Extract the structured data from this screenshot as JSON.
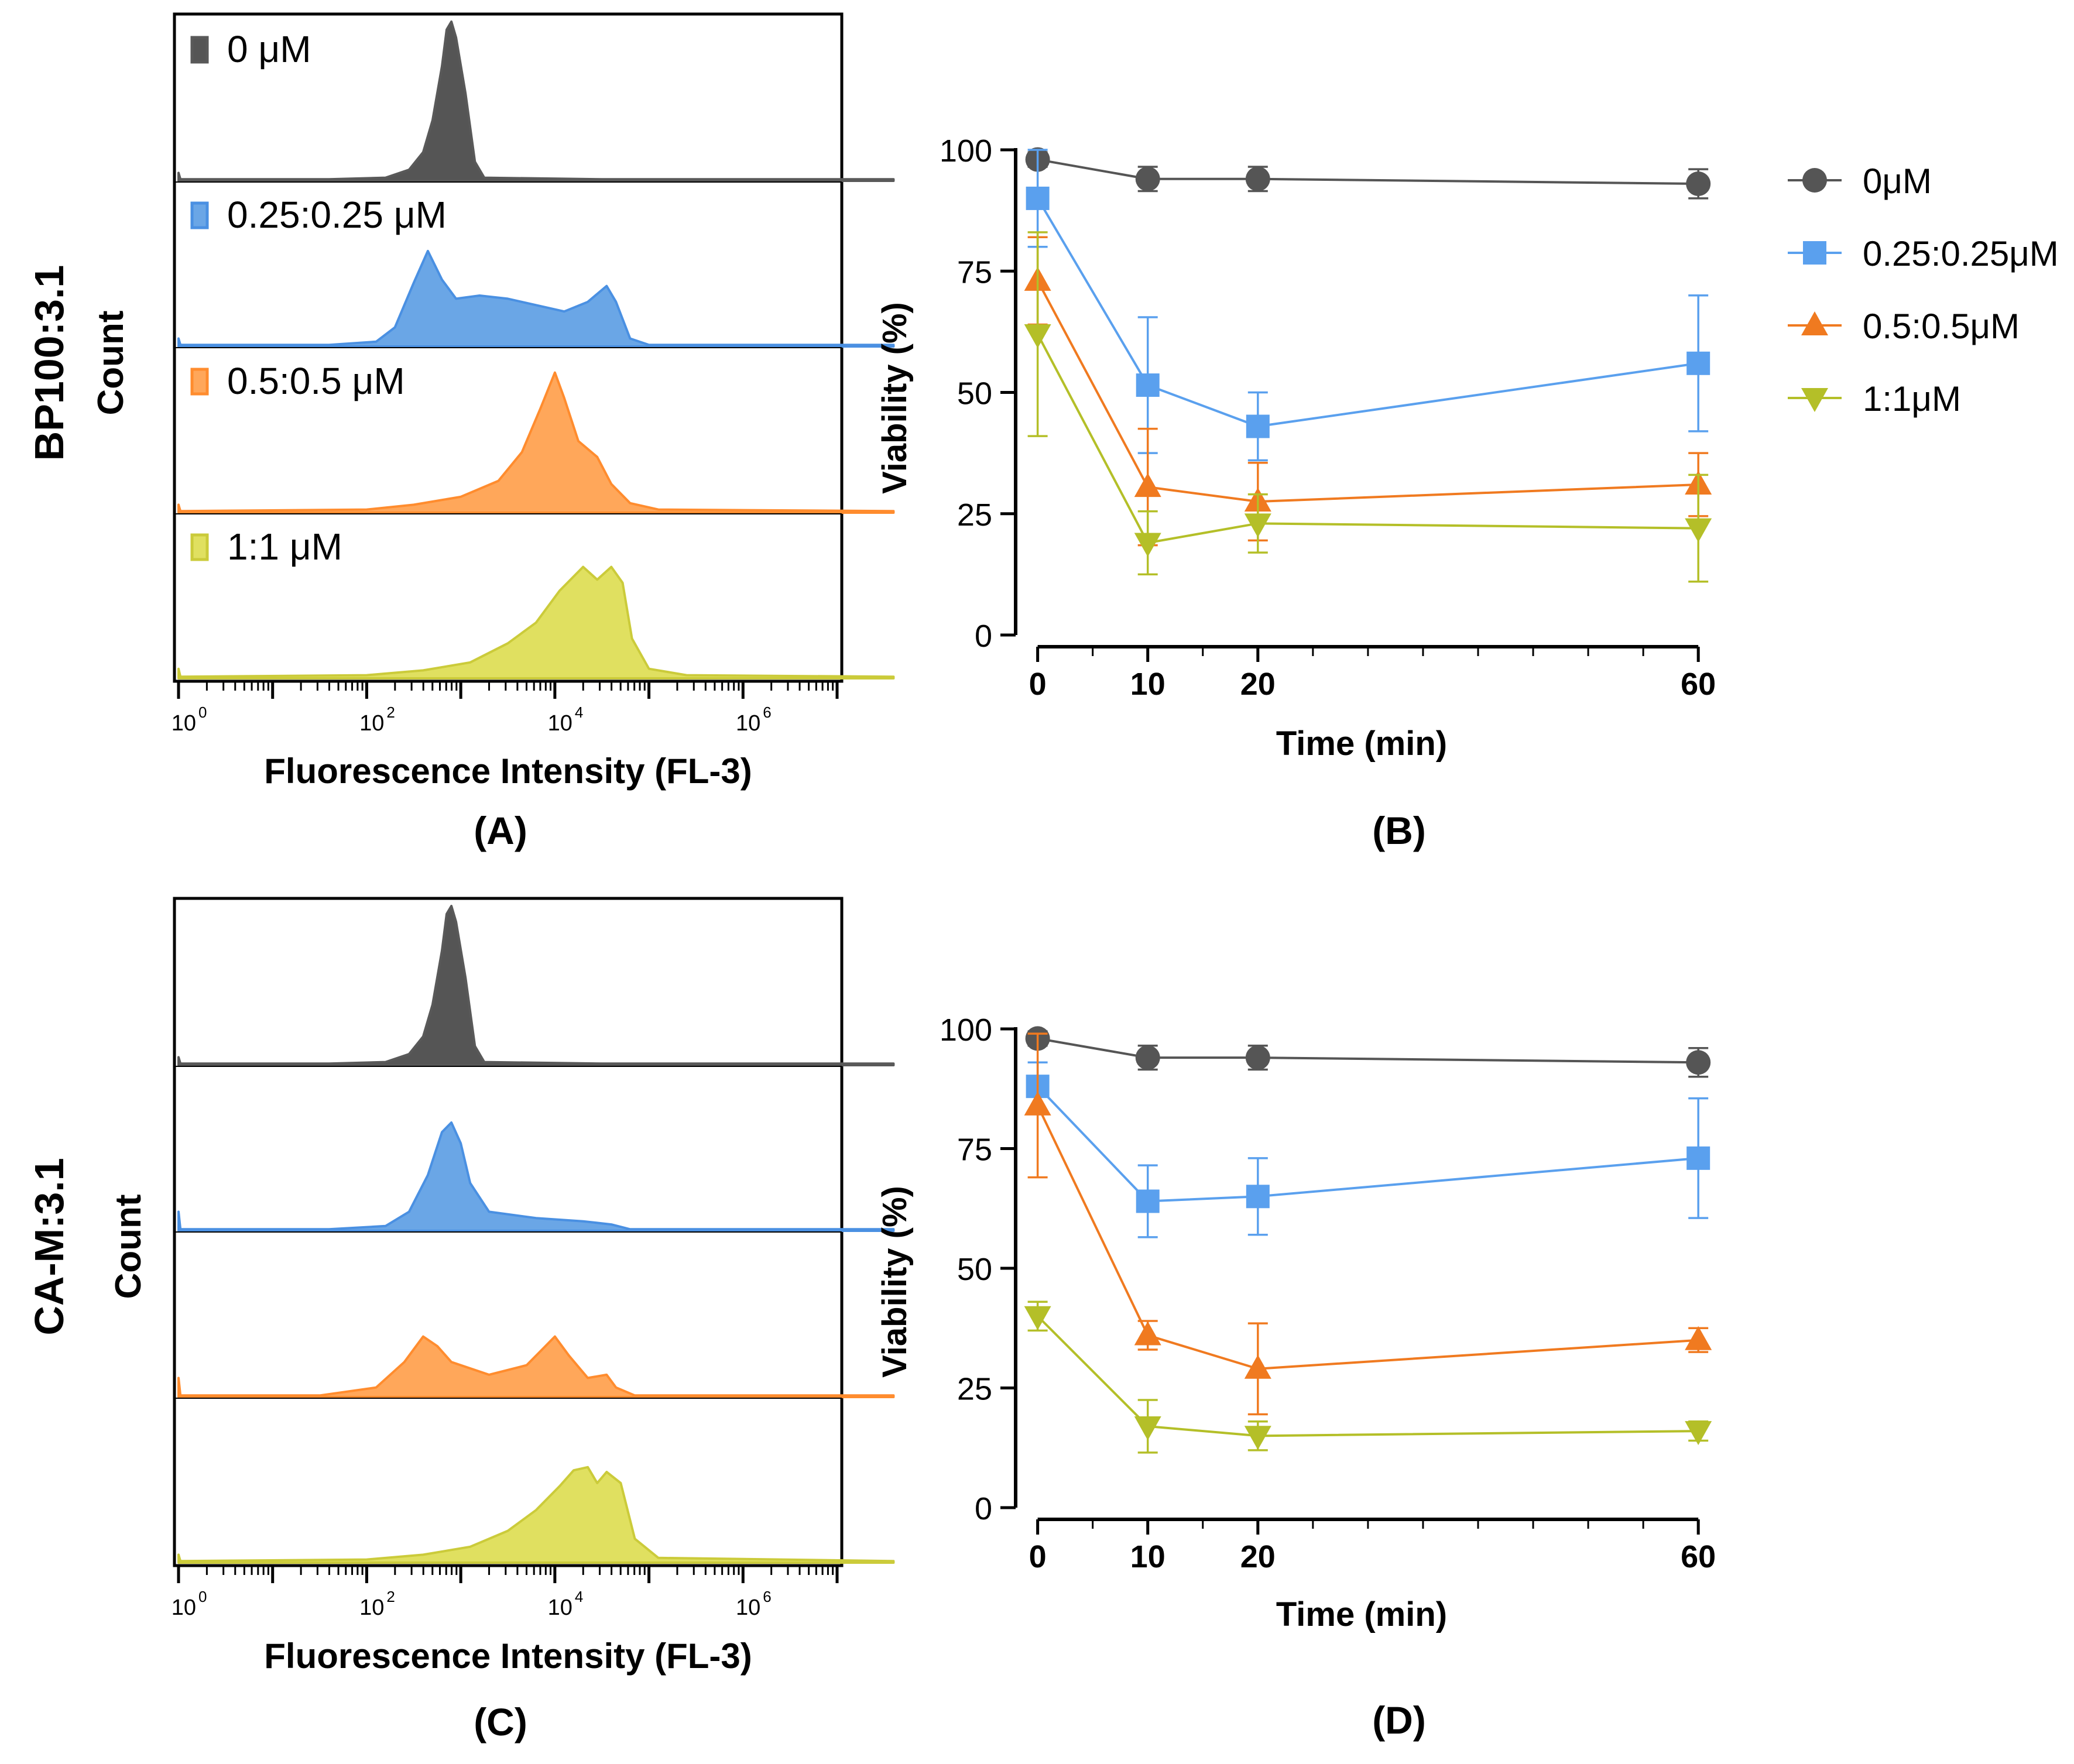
{
  "colors": {
    "0uM": "#595959",
    "0.25uM": "#4a90e2",
    "0.5uM": "#ff8c2e",
    "1uM": "#cbcb3a",
    "0uM_fill": "#555555",
    "0.25uM_fill": "#6aa6e6",
    "0.5uM_fill": "#ffa75a",
    "1uM_fill": "#e0e060",
    "line_0uM": "#555555",
    "line_025uM": "#5aa0ee",
    "line_05uM": "#f07a20",
    "line_1uM": "#b4bf28"
  },
  "chart_data": [
    {
      "id": "A",
      "type": "histogram",
      "panel_label": "(A)",
      "row_label": "BP100:3.1",
      "ylabel": "Count",
      "xlabel": "Fluorescence Intensity (FL-3)",
      "xscale": "log",
      "xlim": [
        1,
        10000000
      ],
      "tick_labels": [
        {
          "base": "10",
          "exp": "0",
          "value": 1
        },
        {
          "base": "10",
          "exp": "2",
          "value": 100
        },
        {
          "base": "10",
          "exp": "4",
          "value": 10000
        },
        {
          "base": "10",
          "exp": "6",
          "value": 1000000
        }
      ],
      "legend": [
        "0 μM",
        "0.25:0.25 μM",
        "0.5:0.5 μM",
        "1:1 μM"
      ],
      "histograms": [
        {
          "name": "0 μM",
          "color_key": "0uM",
          "points": [
            [
              0,
              0.05
            ],
            [
              0.02,
              0.01
            ],
            [
              1.6,
              0.01
            ],
            [
              2.2,
              0.02
            ],
            [
              2.45,
              0.07
            ],
            [
              2.6,
              0.18
            ],
            [
              2.7,
              0.38
            ],
            [
              2.8,
              0.72
            ],
            [
              2.85,
              0.95
            ],
            [
              2.9,
              1.0
            ],
            [
              2.95,
              0.9
            ],
            [
              3.05,
              0.55
            ],
            [
              3.15,
              0.12
            ],
            [
              3.25,
              0.02
            ],
            [
              4.5,
              0.01
            ],
            [
              7.6,
              0.01
            ]
          ]
        },
        {
          "name": "0.25:0.25 μM",
          "color_key": "0.25uM",
          "points": [
            [
              0,
              0.05
            ],
            [
              0.02,
              0.01
            ],
            [
              1.6,
              0.01
            ],
            [
              2.1,
              0.03
            ],
            [
              2.3,
              0.12
            ],
            [
              2.5,
              0.4
            ],
            [
              2.65,
              0.6
            ],
            [
              2.8,
              0.42
            ],
            [
              2.95,
              0.3
            ],
            [
              3.2,
              0.32
            ],
            [
              3.5,
              0.3
            ],
            [
              3.8,
              0.26
            ],
            [
              4.1,
              0.22
            ],
            [
              4.35,
              0.28
            ],
            [
              4.55,
              0.38
            ],
            [
              4.65,
              0.28
            ],
            [
              4.8,
              0.05
            ],
            [
              5.0,
              0.01
            ],
            [
              7.6,
              0.01
            ]
          ]
        },
        {
          "name": "0.5:0.5 μM",
          "color_key": "0.5uM",
          "points": [
            [
              0,
              0.05
            ],
            [
              0.02,
              0.01
            ],
            [
              2.0,
              0.02
            ],
            [
              2.5,
              0.05
            ],
            [
              3.0,
              0.1
            ],
            [
              3.4,
              0.2
            ],
            [
              3.65,
              0.38
            ],
            [
              3.85,
              0.66
            ],
            [
              4.0,
              0.88
            ],
            [
              4.1,
              0.72
            ],
            [
              4.25,
              0.45
            ],
            [
              4.45,
              0.35
            ],
            [
              4.6,
              0.18
            ],
            [
              4.8,
              0.06
            ],
            [
              5.1,
              0.02
            ],
            [
              7.6,
              0.01
            ]
          ]
        },
        {
          "name": "1:1 μM",
          "color_key": "1uM",
          "points": [
            [
              0,
              0.06
            ],
            [
              0.02,
              0.01
            ],
            [
              2.0,
              0.02
            ],
            [
              2.6,
              0.05
            ],
            [
              3.1,
              0.1
            ],
            [
              3.5,
              0.22
            ],
            [
              3.8,
              0.35
            ],
            [
              4.05,
              0.55
            ],
            [
              4.3,
              0.7
            ],
            [
              4.45,
              0.62
            ],
            [
              4.6,
              0.7
            ],
            [
              4.72,
              0.6
            ],
            [
              4.82,
              0.25
            ],
            [
              5.0,
              0.06
            ],
            [
              5.4,
              0.02
            ],
            [
              7.6,
              0.01
            ]
          ]
        }
      ]
    },
    {
      "id": "B",
      "type": "line",
      "panel_label": "(B)",
      "xlabel": "Time (min)",
      "ylabel": "Viability (%)",
      "x": [
        0,
        10,
        20,
        60
      ],
      "xlim": [
        -2,
        61
      ],
      "ylim": [
        0,
        100
      ],
      "yticks": [
        0,
        25,
        50,
        75,
        100
      ],
      "xticks": [
        0,
        10,
        20,
        60
      ],
      "series": [
        {
          "name": "0μM",
          "marker": "circle",
          "color_key": "line_0uM",
          "values": [
            98,
            94,
            94,
            93
          ],
          "errors": [
            1.5,
            2.5,
            2.5,
            3
          ]
        },
        {
          "name": "0.25:0.25μM",
          "marker": "square",
          "color_key": "line_025uM",
          "values": [
            90,
            51.5,
            43,
            56
          ],
          "errors": [
            10,
            14,
            7,
            14
          ]
        },
        {
          "name": "0.5:0.5μM",
          "marker": "triangle-up",
          "color_key": "line_05uM",
          "values": [
            73,
            30.5,
            27.5,
            31
          ],
          "errors": [
            9,
            12,
            8,
            6.5
          ]
        },
        {
          "name": "1:1μM",
          "marker": "triangle-down",
          "color_key": "line_1uM",
          "values": [
            62,
            19,
            23,
            22
          ],
          "errors": [
            21,
            6.5,
            6,
            11
          ]
        }
      ],
      "legend": [
        "0μM",
        "0.25:0.25μM",
        "0.5:0.5μM",
        "1:1μM"
      ]
    },
    {
      "id": "C",
      "type": "histogram",
      "panel_label": "(C)",
      "row_label": "CA-M:3.1",
      "ylabel": "Count",
      "xlabel": "Fluorescence Intensity (FL-3)",
      "xscale": "log",
      "xlim": [
        1,
        10000000
      ],
      "tick_labels": [
        {
          "base": "10",
          "exp": "0",
          "value": 1
        },
        {
          "base": "10",
          "exp": "2",
          "value": 100
        },
        {
          "base": "10",
          "exp": "4",
          "value": 10000
        },
        {
          "base": "10",
          "exp": "6",
          "value": 1000000
        }
      ],
      "histograms": [
        {
          "name": "0 μM",
          "color_key": "0uM",
          "points": [
            [
              0,
              0.05
            ],
            [
              0.02,
              0.01
            ],
            [
              1.6,
              0.01
            ],
            [
              2.2,
              0.02
            ],
            [
              2.45,
              0.07
            ],
            [
              2.6,
              0.18
            ],
            [
              2.7,
              0.38
            ],
            [
              2.8,
              0.72
            ],
            [
              2.85,
              0.95
            ],
            [
              2.9,
              1.0
            ],
            [
              2.95,
              0.9
            ],
            [
              3.05,
              0.55
            ],
            [
              3.15,
              0.12
            ],
            [
              3.25,
              0.02
            ],
            [
              4.5,
              0.01
            ],
            [
              7.6,
              0.01
            ]
          ]
        },
        {
          "name": "0.25:0.25 μM",
          "color_key": "0.25uM",
          "points": [
            [
              0,
              0.12
            ],
            [
              0.02,
              0.01
            ],
            [
              1.6,
              0.01
            ],
            [
              2.2,
              0.03
            ],
            [
              2.45,
              0.12
            ],
            [
              2.65,
              0.35
            ],
            [
              2.8,
              0.62
            ],
            [
              2.9,
              0.68
            ],
            [
              3.0,
              0.55
            ],
            [
              3.1,
              0.3
            ],
            [
              3.3,
              0.12
            ],
            [
              3.8,
              0.08
            ],
            [
              4.3,
              0.06
            ],
            [
              4.6,
              0.04
            ],
            [
              4.8,
              0.01
            ],
            [
              7.6,
              0.01
            ]
          ]
        },
        {
          "name": "0.5:0.5 μM",
          "color_key": "0.5uM",
          "points": [
            [
              0,
              0.12
            ],
            [
              0.02,
              0.01
            ],
            [
              1.5,
              0.01
            ],
            [
              2.1,
              0.06
            ],
            [
              2.4,
              0.22
            ],
            [
              2.6,
              0.38
            ],
            [
              2.75,
              0.32
            ],
            [
              2.9,
              0.22
            ],
            [
              3.3,
              0.14
            ],
            [
              3.7,
              0.2
            ],
            [
              3.9,
              0.32
            ],
            [
              4.0,
              0.38
            ],
            [
              4.15,
              0.26
            ],
            [
              4.35,
              0.12
            ],
            [
              4.55,
              0.14
            ],
            [
              4.65,
              0.06
            ],
            [
              4.85,
              0.01
            ],
            [
              7.6,
              0.01
            ]
          ]
        },
        {
          "name": "1:1 μM",
          "color_key": "1uM",
          "points": [
            [
              0,
              0.05
            ],
            [
              0.02,
              0.01
            ],
            [
              2.0,
              0.02
            ],
            [
              2.6,
              0.05
            ],
            [
              3.1,
              0.1
            ],
            [
              3.5,
              0.2
            ],
            [
              3.8,
              0.33
            ],
            [
              4.05,
              0.48
            ],
            [
              4.2,
              0.58
            ],
            [
              4.35,
              0.6
            ],
            [
              4.45,
              0.5
            ],
            [
              4.55,
              0.57
            ],
            [
              4.7,
              0.5
            ],
            [
              4.85,
              0.15
            ],
            [
              5.1,
              0.03
            ],
            [
              7.6,
              0.01
            ]
          ]
        }
      ]
    },
    {
      "id": "D",
      "type": "line",
      "panel_label": "(D)",
      "xlabel": "Time (min)",
      "ylabel": "Viability (%)",
      "x": [
        0,
        10,
        20,
        60
      ],
      "xlim": [
        -2,
        61
      ],
      "ylim": [
        0,
        100
      ],
      "yticks": [
        0,
        25,
        50,
        75,
        100
      ],
      "xticks": [
        0,
        10,
        20,
        60
      ],
      "series": [
        {
          "name": "0μM",
          "marker": "circle",
          "color_key": "line_0uM",
          "values": [
            98,
            94,
            94,
            93
          ],
          "errors": [
            1.5,
            2.5,
            2.5,
            3
          ]
        },
        {
          "name": "0.25:0.25μM",
          "marker": "square",
          "color_key": "line_025uM",
          "values": [
            88,
            64,
            65,
            73
          ],
          "errors": [
            5,
            7.5,
            8,
            12.5
          ]
        },
        {
          "name": "0.5:0.5μM",
          "marker": "triangle-up",
          "color_key": "line_05uM",
          "values": [
            84,
            36,
            29,
            35
          ],
          "errors": [
            15,
            3,
            9.5,
            2.5
          ]
        },
        {
          "name": "1:1μM",
          "marker": "triangle-down",
          "color_key": "line_1uM",
          "values": [
            40,
            17,
            15,
            16
          ],
          "errors": [
            3,
            5.5,
            3,
            2
          ]
        }
      ]
    }
  ]
}
